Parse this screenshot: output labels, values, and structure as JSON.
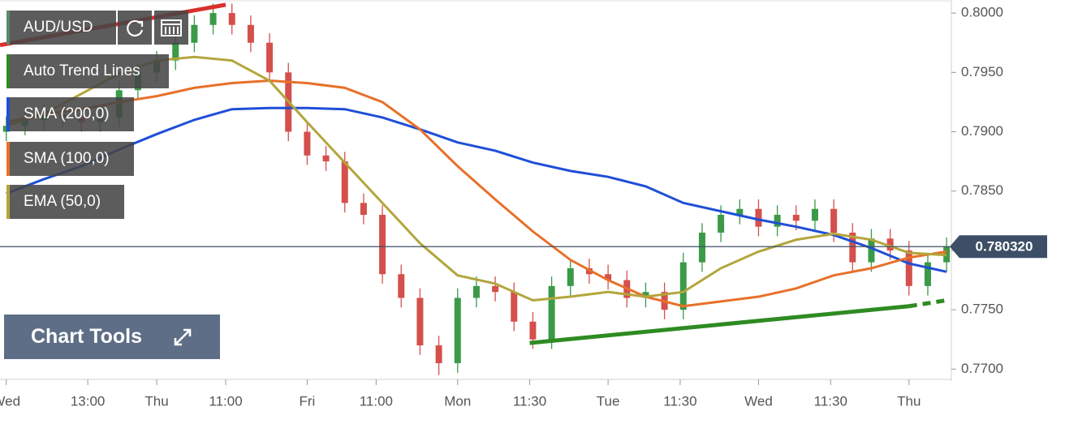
{
  "chart_data": {
    "type": "candlestick",
    "symbol": "AUD/USD",
    "tool_button": "Chart Tools",
    "xlim": [
      -1,
      150.5
    ],
    "ylim": [
      0.769,
      0.8011
    ],
    "xticks": [
      {
        "value": 0,
        "label": "Wed"
      },
      {
        "value": 13,
        "label": "13:00"
      },
      {
        "value": 24,
        "label": "Thu"
      },
      {
        "value": 35,
        "label": "11:00"
      },
      {
        "value": 48,
        "label": "Fri"
      },
      {
        "value": 59,
        "label": "11:00"
      },
      {
        "value": 72,
        "label": "Mon"
      },
      {
        "value": 83.5,
        "label": "11:30"
      },
      {
        "value": 96,
        "label": "Tue"
      },
      {
        "value": 107.5,
        "label": "11:30"
      },
      {
        "value": 120,
        "label": "Wed"
      },
      {
        "value": 131.5,
        "label": "11:30"
      },
      {
        "value": 144,
        "label": "Thu"
      }
    ],
    "yticks": [
      {
        "value": 0.77,
        "label": "0.7700"
      },
      {
        "value": 0.775,
        "label": "0.7750"
      },
      {
        "value": 0.78,
        "label": "0.7800"
      },
      {
        "value": 0.785,
        "label": "0.7850"
      },
      {
        "value": 0.79,
        "label": "0.7900"
      },
      {
        "value": 0.795,
        "label": "0.7950"
      },
      {
        "value": 0.8,
        "label": "0.8000"
      }
    ],
    "current_price": {
      "value": 0.78032,
      "label": "0.780320",
      "color": "#3d4f66"
    },
    "candles": {
      "up_color": "#3a9a48",
      "down_color": "#d4504c",
      "x": [
        0,
        3,
        6,
        9,
        12,
        15,
        18,
        21,
        24,
        27,
        30,
        33,
        36,
        39,
        42,
        45,
        48,
        51,
        54,
        57,
        60,
        63,
        66,
        69,
        72,
        75,
        78,
        81,
        84,
        87,
        90,
        93,
        96,
        99,
        102,
        105,
        108,
        111,
        114,
        117,
        120,
        123,
        126,
        129,
        132,
        135,
        138,
        141,
        144,
        147,
        150
      ],
      "open": [
        0.79,
        0.7905,
        0.791,
        0.7915,
        0.7912,
        0.7908,
        0.7912,
        0.7935,
        0.795,
        0.796,
        0.7975,
        0.799,
        0.8,
        0.799,
        0.7975,
        0.795,
        0.79,
        0.788,
        0.7875,
        0.784,
        0.783,
        0.778,
        0.776,
        0.772,
        0.7705,
        0.776,
        0.777,
        0.7765,
        0.774,
        0.7725,
        0.777,
        0.7785,
        0.778,
        0.7775,
        0.776,
        0.7765,
        0.775,
        0.779,
        0.7815,
        0.783,
        0.7835,
        0.782,
        0.783,
        0.7825,
        0.7835,
        0.7815,
        0.779,
        0.781,
        0.78,
        0.777,
        0.779
      ],
      "high": [
        0.7913,
        0.7918,
        0.7923,
        0.7923,
        0.792,
        0.792,
        0.7943,
        0.7958,
        0.7968,
        0.7983,
        0.7998,
        0.8008,
        0.8008,
        0.7998,
        0.7983,
        0.7958,
        0.7908,
        0.7888,
        0.7883,
        0.7848,
        0.7838,
        0.7788,
        0.7768,
        0.7728,
        0.7768,
        0.7778,
        0.7778,
        0.7773,
        0.7748,
        0.7778,
        0.7793,
        0.7793,
        0.7788,
        0.7783,
        0.7773,
        0.7773,
        0.7798,
        0.7823,
        0.7838,
        0.7843,
        0.7843,
        0.7838,
        0.7838,
        0.7843,
        0.7843,
        0.7823,
        0.7818,
        0.7818,
        0.7808,
        0.7798,
        0.7811
      ],
      "low": [
        0.7892,
        0.7897,
        0.7902,
        0.7904,
        0.79,
        0.79,
        0.7904,
        0.7927,
        0.7942,
        0.7952,
        0.7967,
        0.7982,
        0.7982,
        0.7967,
        0.7942,
        0.7892,
        0.7872,
        0.7867,
        0.7832,
        0.7822,
        0.7772,
        0.7752,
        0.7712,
        0.7695,
        0.7697,
        0.7752,
        0.7757,
        0.7732,
        0.7717,
        0.7717,
        0.7762,
        0.7772,
        0.7767,
        0.7752,
        0.7752,
        0.7742,
        0.7742,
        0.7782,
        0.7807,
        0.7822,
        0.7812,
        0.7812,
        0.7817,
        0.7817,
        0.7807,
        0.7782,
        0.7782,
        0.7792,
        0.7762,
        0.7762,
        0.7782
      ],
      "close": [
        0.7905,
        0.791,
        0.7915,
        0.7912,
        0.7908,
        0.7912,
        0.7935,
        0.795,
        0.796,
        0.7975,
        0.799,
        0.8,
        0.799,
        0.7975,
        0.795,
        0.79,
        0.788,
        0.7875,
        0.784,
        0.783,
        0.778,
        0.776,
        0.772,
        0.7705,
        0.776,
        0.777,
        0.7765,
        0.774,
        0.7725,
        0.777,
        0.7785,
        0.778,
        0.7775,
        0.776,
        0.7765,
        0.775,
        0.779,
        0.7815,
        0.783,
        0.7835,
        0.782,
        0.783,
        0.7825,
        0.7835,
        0.7815,
        0.779,
        0.781,
        0.78,
        0.777,
        0.779,
        0.7803
      ]
    },
    "x": [
      0,
      6,
      12,
      18,
      24,
      30,
      36,
      42,
      48,
      54,
      60,
      66,
      72,
      78,
      84,
      90,
      96,
      102,
      108,
      114,
      120,
      126,
      132,
      138,
      144,
      150
    ],
    "series": [
      {
        "name": "SMA (200,0)",
        "color": "#1f4fd6",
        "values": [
          0.7848,
          0.786,
          0.7871,
          0.7885,
          0.7898,
          0.791,
          0.7919,
          0.792,
          0.792,
          0.7919,
          0.7912,
          0.7902,
          0.7891,
          0.7884,
          0.7874,
          0.7867,
          0.7862,
          0.7854,
          0.784,
          0.7833,
          0.7826,
          0.782,
          0.7813,
          0.7802,
          0.7789,
          0.7782
        ]
      },
      {
        "name": "SMA (100,0)",
        "color": "#e8702a",
        "values": [
          0.7908,
          0.7915,
          0.7919,
          0.7925,
          0.793,
          0.7937,
          0.7941,
          0.7943,
          0.7941,
          0.7937,
          0.7925,
          0.7902,
          0.7871,
          0.7843,
          0.7816,
          0.7792,
          0.7775,
          0.7761,
          0.7753,
          0.7757,
          0.7761,
          0.7768,
          0.7779,
          0.7785,
          0.7794,
          0.7799
        ]
      },
      {
        "name": "EMA (50,0)",
        "color": "#b3a63c",
        "values": [
          0.7905,
          0.7915,
          0.7932,
          0.7949,
          0.796,
          0.7963,
          0.796,
          0.7943,
          0.7908,
          0.7874,
          0.784,
          0.7806,
          0.7779,
          0.7772,
          0.7758,
          0.7761,
          0.7765,
          0.7761,
          0.7765,
          0.7785,
          0.7799,
          0.7809,
          0.7814,
          0.7809,
          0.7798,
          0.7796
        ]
      }
    ],
    "trend_lines": {
      "name": "Auto Trend Lines",
      "color": "#2e8b22",
      "lines": [
        {
          "color": "#d9302c",
          "x": [
            -1,
            35
          ],
          "values": [
            0.7973,
            0.8007
          ]
        },
        {
          "color": "#2e8b22",
          "x": [
            83.5,
            144
          ],
          "values": [
            0.7722,
            0.7753
          ]
        },
        {
          "color": "#2e8b22",
          "dashed": true,
          "x": [
            144,
            150
          ],
          "values": [
            0.7753,
            0.7758
          ]
        }
      ]
    }
  }
}
